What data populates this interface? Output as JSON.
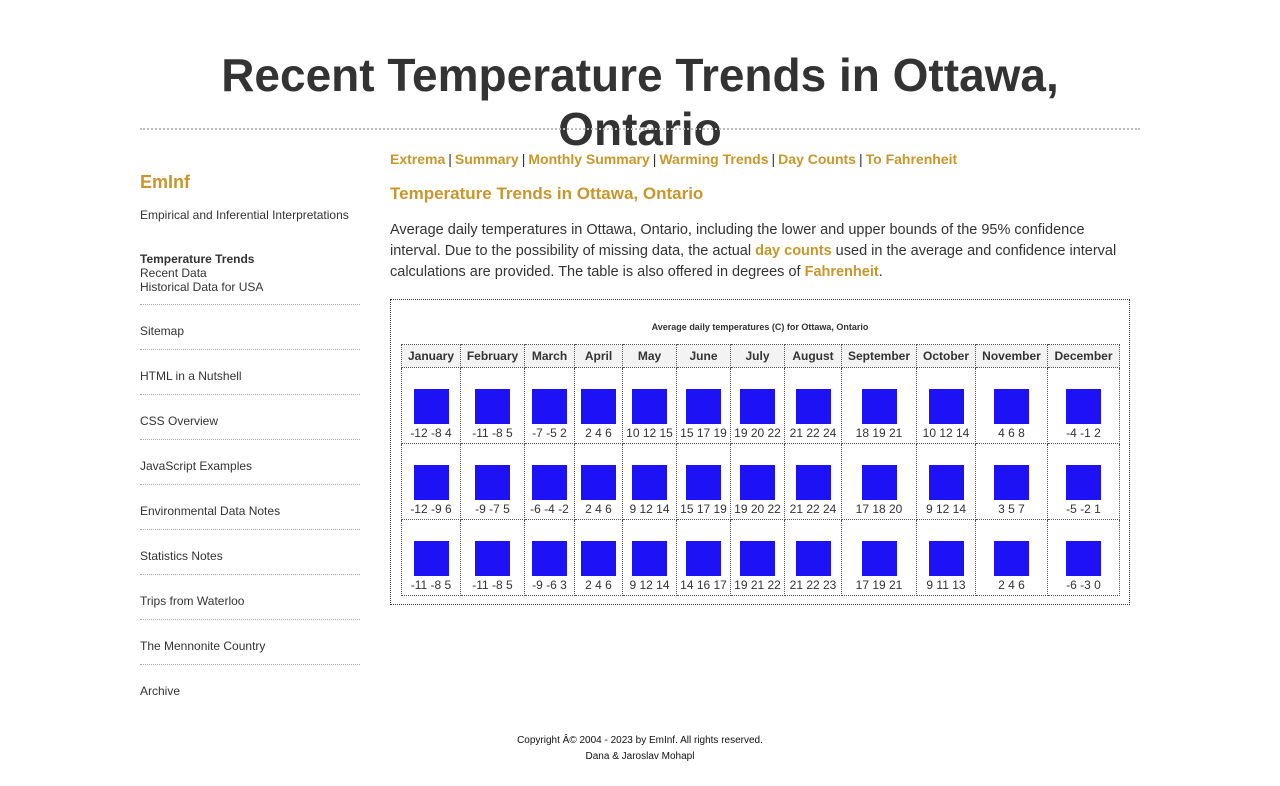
{
  "header": {
    "title": "Recent Temperature Trends in Ottawa, Ontario"
  },
  "sidebar": {
    "brand": "EmInf",
    "tagline": "Empirical and Inferential Interpretations",
    "current": "Temperature Trends",
    "sublinks": [
      "Recent Data",
      "Historical Data for USA"
    ],
    "items": [
      "Sitemap",
      "HTML in a Nutshell",
      "CSS Overview",
      "JavaScript Examples",
      "Environmental Data Notes",
      "Statistics Notes",
      "Trips from Waterloo",
      "The Mennonite Country",
      "Archive"
    ]
  },
  "topnav": {
    "links": [
      "Extrema",
      "Summary",
      "Monthly Summary",
      "Warming Trends",
      "Day Counts",
      "To Fahrenheit"
    ],
    "separator": "|"
  },
  "main": {
    "heading": "Temperature Trends in Ottawa, Ontario",
    "intro_part1": "Average daily temperatures in Ottawa, Ontario, including the lower and upper bounds of the 95% confidence interval. Due to the possibility of missing data, the actual ",
    "intro_link1": "day counts",
    "intro_part2": " used in the average and confidence interval calculations are provided. The table is also offered in degrees of ",
    "intro_link2": "Fahrenheit",
    "intro_part3": "."
  },
  "table": {
    "caption": "Average daily temperatures (C) for Ottawa, Ontario",
    "bar_color": "#1c12f5",
    "months": [
      "January",
      "February",
      "March",
      "April",
      "May",
      "June",
      "July",
      "August",
      "September",
      "October",
      "November",
      "December"
    ],
    "rows": [
      [
        "-12 -8 4",
        "-11 -8 5",
        "-7 -5 2",
        "2 4 6",
        "10 12 15",
        "15 17 19",
        "19 20 22",
        "21 22 24",
        "18 19 21",
        "10 12 14",
        "4 6 8",
        "-4 -1 2"
      ],
      [
        "-12 -9 6",
        "-9 -7 5",
        "-6 -4 -2",
        "2 4 6",
        "9 12 14",
        "15 17 19",
        "19 20 22",
        "21 22 24",
        "17 18 20",
        "9 12 14",
        "3 5 7",
        "-5 -2 1"
      ],
      [
        "-11 -8 5",
        "-11 -8 5",
        "-9 -6 3",
        "2 4 6",
        "9 12 14",
        "14 16 17",
        "19 21 22",
        "21 22 23",
        "17 19 21",
        "9 11 13",
        "2 4 6",
        "-6 -3 0"
      ]
    ]
  },
  "footer": {
    "copyright": "Copyright Â© 2004 - 2023 by EmInf. All rights reserved.",
    "authors": "Dana & Jaroslav Mohapl"
  }
}
